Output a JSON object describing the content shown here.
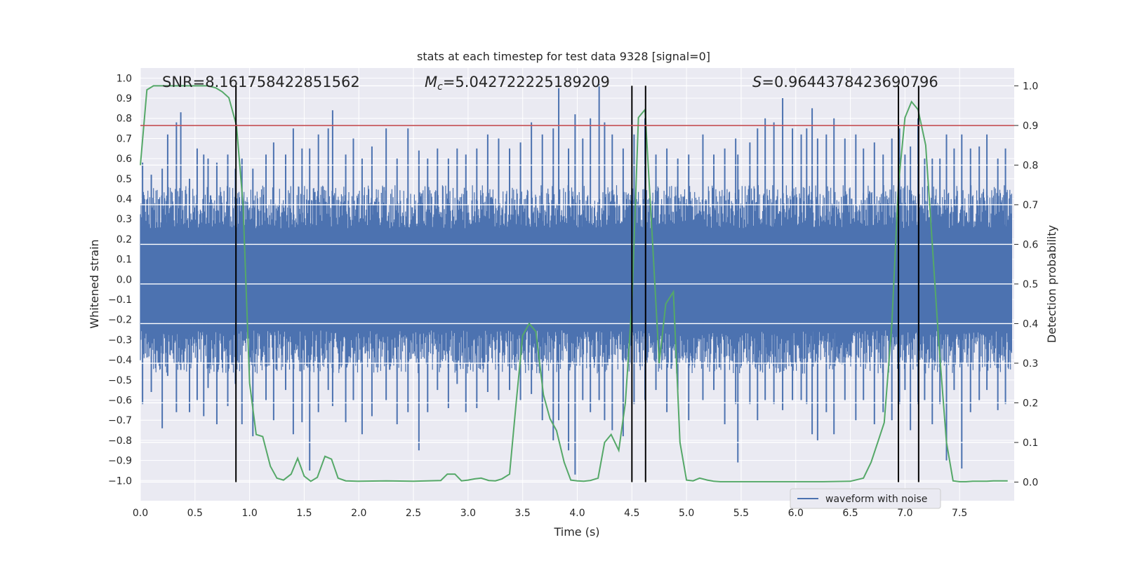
{
  "chart_data": {
    "type": "line",
    "title": "stats at each timestep for test data 9328 [signal=0]",
    "xlabel": "Time (s)",
    "ylabel_left": "Whitened strain",
    "ylabel_right": "Detection probability",
    "xlim": [
      0.0,
      8.0
    ],
    "ylim_left": [
      -1.1,
      1.05
    ],
    "ylim_right": [
      -0.047,
      1.045
    ],
    "xticks": [
      "0.0",
      "0.5",
      "1.0",
      "1.5",
      "2.0",
      "2.5",
      "3.0",
      "3.5",
      "4.0",
      "4.5",
      "5.0",
      "5.5",
      "6.0",
      "6.5",
      "7.0",
      "7.5"
    ],
    "yticks_left": [
      "−1.0",
      "−0.9",
      "−0.8",
      "−0.7",
      "−0.6",
      "−0.5",
      "−0.4",
      "−0.3",
      "−0.2",
      "−0.1",
      "0.0",
      "0.1",
      "0.2",
      "0.3",
      "0.4",
      "0.5",
      "0.6",
      "0.7",
      "0.8",
      "0.9",
      "1.0"
    ],
    "yticks_right": [
      "0.0",
      "0.1",
      "0.2",
      "0.3",
      "0.4",
      "0.5",
      "0.6",
      "0.7",
      "0.8",
      "0.9",
      "1.0"
    ],
    "annotations": {
      "snr": "SNR=8.161758422851562",
      "mc_symbol": "M",
      "mc_sub": "c",
      "mc_value": "=5.042722225189209",
      "s_symbol": "S",
      "s_value": "=0.9644378423690796"
    },
    "threshold": {
      "value": 0.9,
      "axis": "right",
      "color": "#c44e52"
    },
    "vertical_lines": [
      0.875,
      4.5,
      4.625,
      6.94,
      7.125
    ],
    "legend": {
      "label": "waveform with noise",
      "position": "lower right"
    },
    "series": [
      {
        "name": "waveform with noise",
        "axis": "left",
        "color": "#4c72b0",
        "typical_amplitude": 0.39,
        "spikes": [
          [
            0.02,
            0.58,
            -0.62
          ],
          [
            0.1,
            0.52,
            -0.56
          ],
          [
            0.2,
            0.55,
            -0.74
          ],
          [
            0.25,
            0.72,
            -0.48
          ],
          [
            0.33,
            0.78,
            -0.66
          ],
          [
            0.37,
            0.83,
            -0.45
          ],
          [
            0.45,
            0.5,
            -0.66
          ],
          [
            0.52,
            0.65,
            -0.6
          ],
          [
            0.58,
            0.62,
            -0.68
          ],
          [
            0.62,
            0.6,
            -0.54
          ],
          [
            0.7,
            0.58,
            -0.72
          ],
          [
            0.8,
            0.62,
            -0.63
          ],
          [
            0.87,
            0.55,
            -0.52
          ],
          [
            0.93,
            0.6,
            -0.72
          ],
          [
            1.03,
            0.55,
            -0.78
          ],
          [
            1.15,
            0.62,
            -0.6
          ],
          [
            1.22,
            0.68,
            -0.7
          ],
          [
            1.33,
            0.62,
            -0.55
          ],
          [
            1.4,
            0.75,
            -0.77
          ],
          [
            1.48,
            0.65,
            -0.71
          ],
          [
            1.55,
            0.65,
            -0.95
          ],
          [
            1.63,
            0.72,
            -0.66
          ],
          [
            1.72,
            0.75,
            -0.55
          ],
          [
            1.76,
            0.84,
            -0.63
          ],
          [
            1.88,
            0.62,
            -0.71
          ],
          [
            1.95,
            0.7,
            -0.6
          ],
          [
            2.03,
            0.6,
            -0.77
          ],
          [
            2.12,
            0.66,
            -0.68
          ],
          [
            2.25,
            0.75,
            -0.6
          ],
          [
            2.35,
            0.6,
            -0.72
          ],
          [
            2.45,
            0.75,
            -0.66
          ],
          [
            2.55,
            0.64,
            -0.85
          ],
          [
            2.63,
            0.6,
            -0.66
          ],
          [
            2.72,
            0.65,
            -0.55
          ],
          [
            2.82,
            0.6,
            -0.64
          ],
          [
            2.9,
            0.65,
            -0.52
          ],
          [
            2.98,
            0.62,
            -0.66
          ],
          [
            3.08,
            0.65,
            -0.64
          ],
          [
            3.18,
            0.72,
            -0.56
          ],
          [
            3.28,
            0.7,
            -0.6
          ],
          [
            3.38,
            0.65,
            -0.55
          ],
          [
            3.48,
            0.68,
            -0.6
          ],
          [
            3.58,
            0.78,
            -0.57
          ],
          [
            3.68,
            0.72,
            -0.7
          ],
          [
            3.78,
            0.75,
            -0.8
          ],
          [
            3.83,
            0.95,
            -0.7
          ],
          [
            3.92,
            0.65,
            -0.85
          ],
          [
            3.98,
            0.82,
            -0.97
          ],
          [
            4.05,
            0.7,
            -0.6
          ],
          [
            4.12,
            0.8,
            -0.66
          ],
          [
            4.2,
            0.97,
            -0.6
          ],
          [
            4.25,
            0.78,
            -0.7
          ],
          [
            4.32,
            0.72,
            -0.75
          ],
          [
            4.42,
            0.65,
            -0.78
          ],
          [
            4.52,
            0.72,
            -0.62
          ],
          [
            4.62,
            0.8,
            -0.6
          ],
          [
            4.72,
            0.62,
            -0.55
          ],
          [
            4.82,
            0.65,
            -0.66
          ],
          [
            4.92,
            0.6,
            -0.55
          ],
          [
            5.02,
            0.62,
            -0.7
          ],
          [
            5.15,
            0.72,
            -0.6
          ],
          [
            5.25,
            0.62,
            -0.55
          ],
          [
            5.35,
            0.65,
            -0.72
          ],
          [
            5.45,
            0.7,
            -0.62
          ],
          [
            5.47,
            0.62,
            -0.91
          ],
          [
            5.58,
            0.68,
            -0.62
          ],
          [
            5.65,
            0.75,
            -0.7
          ],
          [
            5.72,
            0.8,
            -0.6
          ],
          [
            5.8,
            0.78,
            -0.62
          ],
          [
            5.88,
            0.9,
            -0.65
          ],
          [
            5.97,
            0.75,
            -0.6
          ],
          [
            6.05,
            0.72,
            -0.6
          ],
          [
            6.1,
            0.75,
            -0.62
          ],
          [
            6.15,
            0.85,
            -0.77
          ],
          [
            6.2,
            0.7,
            -0.8
          ],
          [
            6.28,
            0.72,
            -0.66
          ],
          [
            6.35,
            0.8,
            -0.77
          ],
          [
            6.45,
            0.7,
            -0.6
          ],
          [
            6.55,
            0.72,
            -0.7
          ],
          [
            6.62,
            0.65,
            -0.6
          ],
          [
            6.72,
            0.68,
            -0.72
          ],
          [
            6.8,
            0.62,
            -0.66
          ],
          [
            6.88,
            0.7,
            -0.7
          ],
          [
            6.95,
            0.75,
            -0.62
          ],
          [
            7.0,
            0.62,
            -0.55
          ],
          [
            7.05,
            0.66,
            -0.75
          ],
          [
            7.12,
            0.8,
            -0.62
          ],
          [
            7.18,
            0.6,
            -0.6
          ],
          [
            7.25,
            0.6,
            -0.72
          ],
          [
            7.32,
            0.6,
            -0.62
          ],
          [
            7.38,
            0.72,
            -0.9
          ],
          [
            7.45,
            0.65,
            -0.55
          ],
          [
            7.52,
            0.72,
            -0.94
          ],
          [
            7.6,
            0.65,
            -0.66
          ],
          [
            7.68,
            0.66,
            -0.6
          ],
          [
            7.75,
            0.72,
            -0.55
          ],
          [
            7.85,
            0.6,
            -0.65
          ],
          [
            7.92,
            0.65,
            -0.62
          ]
        ]
      },
      {
        "name": "detection probability",
        "axis": "right",
        "color": "#55a868",
        "x": [
          0.0,
          0.06,
          0.12,
          0.19,
          0.25,
          0.31,
          0.38,
          0.44,
          0.5,
          0.56,
          0.62,
          0.69,
          0.75,
          0.81,
          0.88,
          0.94,
          1.0,
          1.06,
          1.12,
          1.19,
          1.25,
          1.31,
          1.38,
          1.44,
          1.5,
          1.56,
          1.62,
          1.69,
          1.75,
          1.81,
          1.88,
          2.0,
          2.25,
          2.5,
          2.75,
          2.81,
          2.88,
          2.94,
          3.0,
          3.06,
          3.12,
          3.19,
          3.25,
          3.31,
          3.38,
          3.44,
          3.5,
          3.56,
          3.62,
          3.69,
          3.75,
          3.81,
          3.88,
          3.94,
          4.0,
          4.06,
          4.12,
          4.19,
          4.25,
          4.31,
          4.38,
          4.44,
          4.5,
          4.56,
          4.62,
          4.69,
          4.75,
          4.81,
          4.88,
          4.94,
          5.0,
          5.06,
          5.12,
          5.19,
          5.25,
          5.31,
          5.5,
          5.75,
          6.0,
          6.25,
          6.5,
          6.62,
          6.69,
          6.75,
          6.81,
          6.88,
          6.94,
          7.0,
          7.06,
          7.12,
          7.19,
          7.25,
          7.31,
          7.38,
          7.44,
          7.5,
          7.56,
          7.62,
          7.69,
          7.75,
          7.81,
          7.88,
          7.94
        ],
        "values": [
          0.8,
          0.99,
          1.0,
          1.0,
          1.0,
          1.0,
          1.0,
          1.0,
          1.0,
          1.0,
          1.0,
          0.995,
          0.985,
          0.97,
          0.9,
          0.7,
          0.25,
          0.12,
          0.115,
          0.04,
          0.01,
          0.005,
          0.02,
          0.06,
          0.015,
          0.002,
          0.012,
          0.065,
          0.058,
          0.01,
          0.003,
          0.002,
          0.003,
          0.002,
          0.004,
          0.02,
          0.02,
          0.003,
          0.005,
          0.008,
          0.01,
          0.004,
          0.003,
          0.008,
          0.02,
          0.2,
          0.37,
          0.4,
          0.38,
          0.22,
          0.16,
          0.13,
          0.05,
          0.005,
          0.003,
          0.002,
          0.004,
          0.01,
          0.1,
          0.12,
          0.08,
          0.2,
          0.45,
          0.92,
          0.94,
          0.6,
          0.3,
          0.45,
          0.48,
          0.1,
          0.005,
          0.003,
          0.01,
          0.005,
          0.002,
          0.001,
          0.001,
          0.001,
          0.001,
          0.001,
          0.002,
          0.01,
          0.05,
          0.1,
          0.15,
          0.4,
          0.75,
          0.92,
          0.96,
          0.94,
          0.85,
          0.6,
          0.35,
          0.1,
          0.003,
          0.001,
          0.001,
          0.002,
          0.002,
          0.002,
          0.003,
          0.003,
          0.003
        ]
      }
    ]
  }
}
